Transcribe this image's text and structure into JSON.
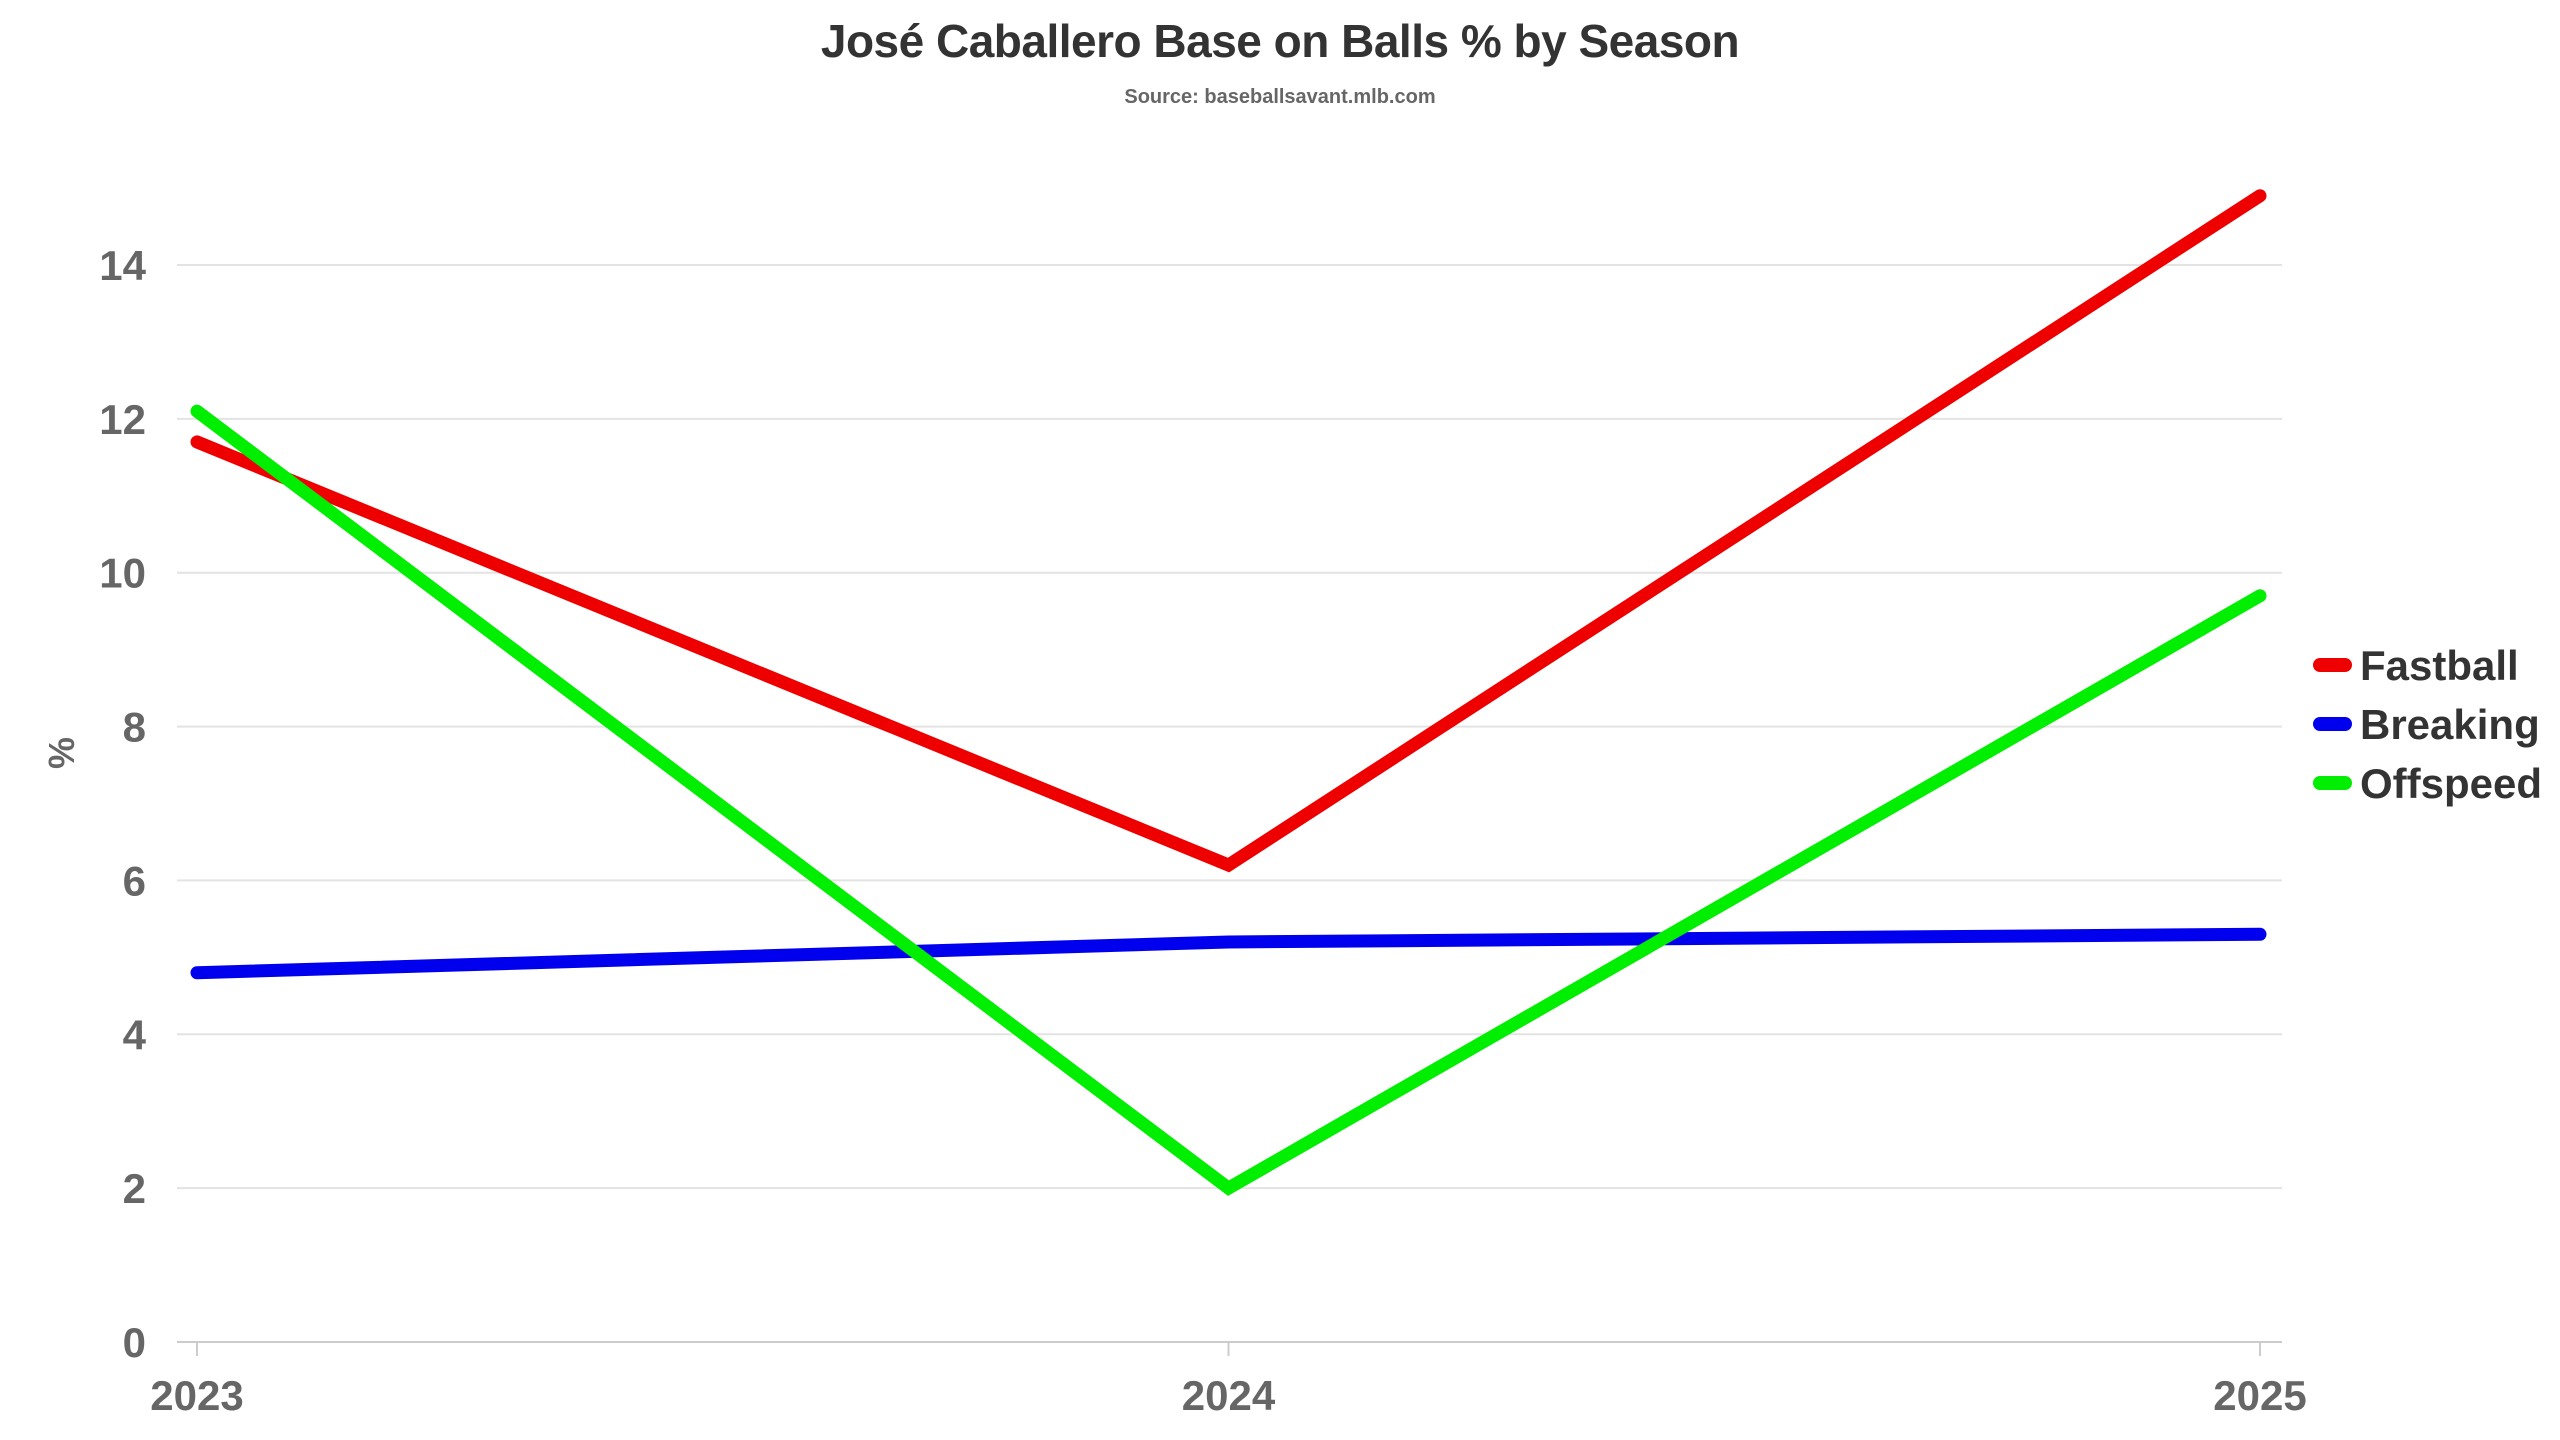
{
  "chart_data": {
    "type": "line",
    "title": "José Caballero Base on Balls % by Season",
    "subtitle": "Source: baseballsavant.mlb.com",
    "xlabel": "",
    "ylabel": "%",
    "categories": [
      "2023",
      "2024",
      "2025"
    ],
    "y_ticks": [
      "0",
      "2",
      "4",
      "6",
      "8",
      "10",
      "12",
      "14"
    ],
    "ylim": [
      0,
      15
    ],
    "grid": true,
    "legend_position": "right",
    "series": [
      {
        "name": "Fastball",
        "color": "#ee0000",
        "values": [
          11.7,
          6.2,
          14.9
        ]
      },
      {
        "name": "Breaking",
        "color": "#0000ee",
        "values": [
          4.8,
          5.2,
          5.3
        ]
      },
      {
        "name": "Offspeed",
        "color": "#00ee00",
        "values": [
          12.1,
          2.0,
          9.7
        ]
      }
    ]
  }
}
